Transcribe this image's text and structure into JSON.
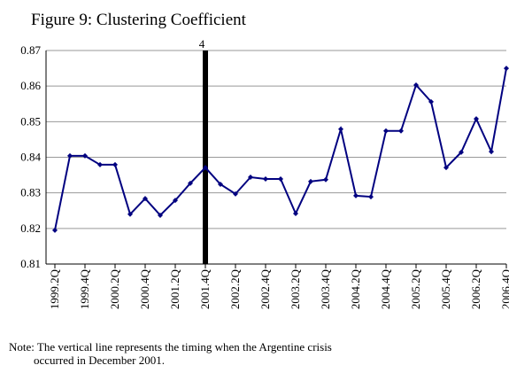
{
  "chart_data": {
    "type": "line",
    "title": "Figure 9: Clustering Coefficient",
    "categories": [
      "1999.2Q",
      null,
      "1999.4Q",
      null,
      "2000.2Q",
      null,
      "2000.4Q",
      null,
      "2001.2Q",
      null,
      "2001.4Q",
      null,
      "2002.2Q",
      null,
      "2002.4Q",
      null,
      "2003.2Q",
      null,
      "2003.4Q",
      null,
      "2004.2Q",
      null,
      "2004.4Q",
      null,
      "2005.2Q",
      null,
      "2005.4Q",
      null,
      "2006.2Q",
      null,
      "2006.4Q"
    ],
    "series": [
      {
        "color": "#000080",
        "values": [
          0.8195,
          0.8404,
          0.8404,
          0.8379,
          0.8379,
          0.824,
          0.8284,
          0.8237,
          0.8279,
          0.8327,
          0.8371,
          0.8324,
          0.8297,
          0.8344,
          0.8339,
          0.8339,
          0.8242,
          0.8332,
          0.8337,
          0.8479,
          0.8292,
          0.8289,
          0.8474,
          0.8474,
          0.8603,
          0.8556,
          0.8371,
          0.8414,
          0.8508,
          0.8416,
          0.865
        ]
      }
    ],
    "ylim": [
      0.81,
      0.87
    ],
    "yticks": [
      0.81,
      0.82,
      0.83,
      0.84,
      0.85,
      0.86,
      0.87
    ],
    "grid": true,
    "vline": {
      "category": "2001.4Q",
      "label": "4",
      "color": "#000000"
    },
    "note": [
      "Note: The vertical line represents the timing when the Argentine crisis",
      "occurred in December 2001."
    ]
  }
}
